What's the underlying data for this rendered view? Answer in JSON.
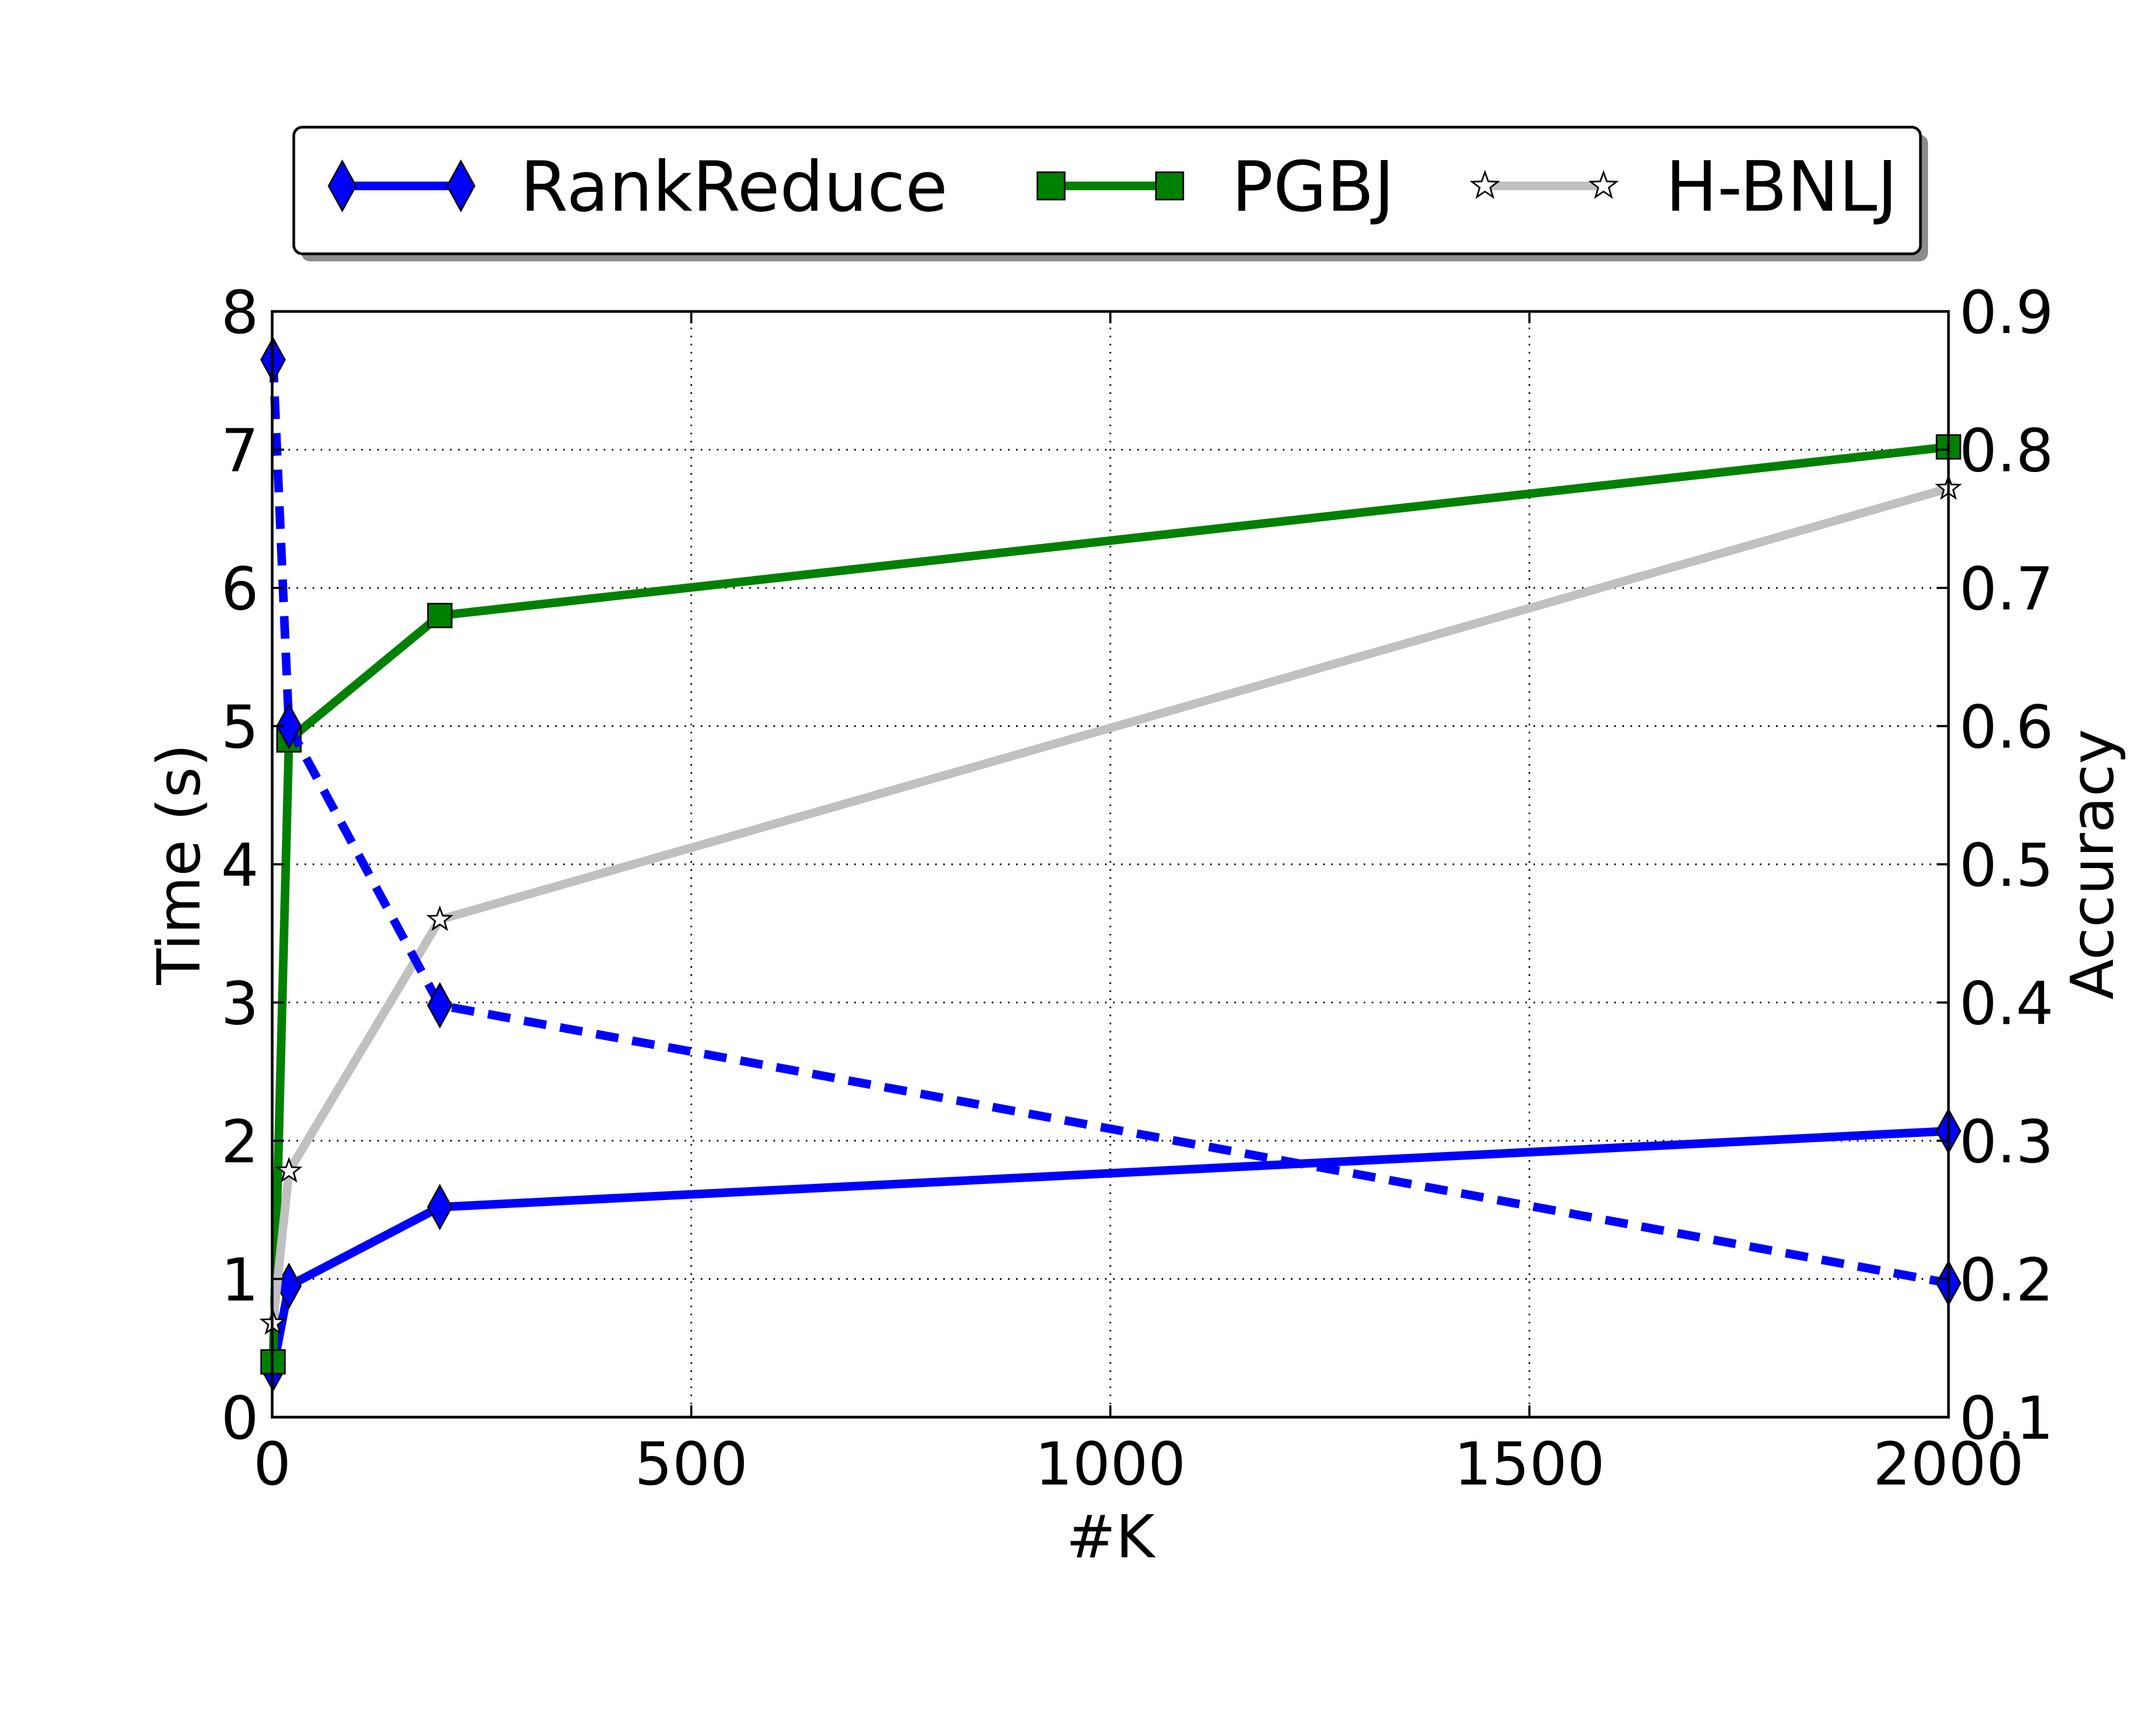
{
  "chart_data": {
    "type": "line",
    "xlabel": "#K",
    "ylabel": "Time (s)",
    "y2label": "Accuracy",
    "xlim": [
      0,
      2000
    ],
    "ylim": [
      0,
      8
    ],
    "y2lim": [
      0.1,
      0.9
    ],
    "xticks": [
      "0",
      "500",
      "1000",
      "1500",
      "2000"
    ],
    "yticks": [
      "0",
      "1",
      "2",
      "3",
      "4",
      "5",
      "6",
      "7",
      "8"
    ],
    "y2ticks": [
      "0.1",
      "0.2",
      "0.3",
      "0.4",
      "0.5",
      "0.6",
      "0.7",
      "0.8",
      "0.9"
    ],
    "grid": true,
    "grid_style": "dotted",
    "legend_position": "top",
    "series": [
      {
        "name": "RankReduce",
        "axis": "left",
        "color": "#0000ff",
        "line_style": "solid",
        "marker": "diamond",
        "x": [
          1,
          20,
          200,
          2000
        ],
        "y": [
          0.35,
          0.95,
          1.52,
          2.07
        ]
      },
      {
        "name": "PGBJ",
        "axis": "left",
        "color": "#008000",
        "line_style": "solid",
        "marker": "square",
        "x": [
          1,
          20,
          200,
          2000
        ],
        "y": [
          0.4,
          4.9,
          5.8,
          7.02
        ]
      },
      {
        "name": "H-BNLJ",
        "axis": "left",
        "color": "#c0c0c0",
        "line_style": "solid",
        "marker": "star",
        "x": [
          1,
          20,
          200,
          2000
        ],
        "y": [
          0.68,
          1.78,
          3.6,
          6.72
        ]
      },
      {
        "axis": "right",
        "color": "#0000ff",
        "line_style": "dashed",
        "marker": "diamond",
        "x": [
          1,
          20,
          200,
          2000
        ],
        "y": [
          0.865,
          0.6,
          0.398,
          0.197
        ]
      }
    ]
  }
}
